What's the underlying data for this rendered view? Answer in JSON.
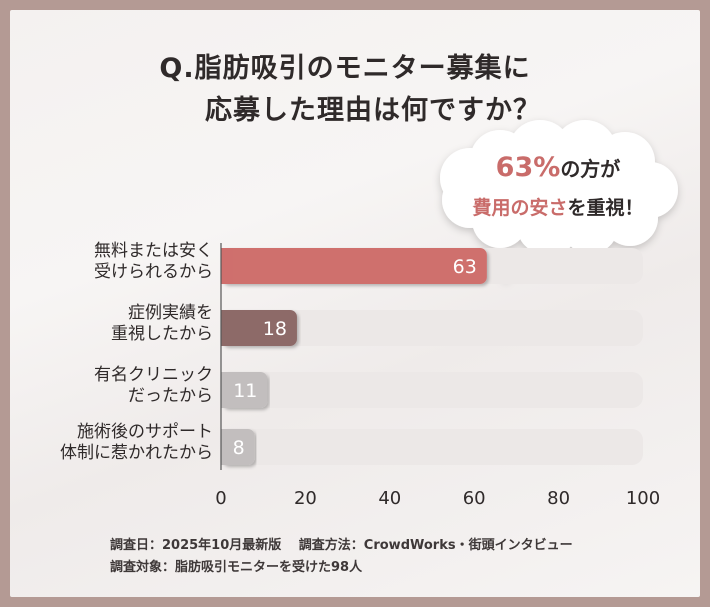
{
  "title_lines": [
    "Q.脂肪吸引のモニター募集に",
    "応募した理由は何ですか？"
  ],
  "callout": {
    "line1_emphasis": "63%",
    "line1_rest": "の方が",
    "line2_emphasis": "費用の安さ",
    "line2_rest": "を重視！"
  },
  "chart_data": {
    "type": "bar",
    "orientation": "horizontal",
    "categories": [
      [
        "無料または安く",
        "受けられるから"
      ],
      [
        "症例実績を",
        "重視したから"
      ],
      [
        "有名クリニック",
        "だったから"
      ],
      [
        "施術後のサポート",
        "体制に惹かれたから"
      ]
    ],
    "values": [
      63,
      18,
      11,
      8
    ],
    "xlim": [
      0,
      100
    ],
    "xticks": [
      0,
      20,
      40,
      60,
      80,
      100
    ],
    "title": "",
    "xlabel": "",
    "ylabel": "",
    "grid": false,
    "bar_colors": [
      "#cf6f6d",
      "#8d6a68",
      "#c2bebe",
      "#c2bebe"
    ],
    "track_color": "#ece8e7"
  },
  "notes": {
    "line1": "調査日：2025年10月最新版　 調査方法：CrowdWorks・街頭インタビュー",
    "line2": "調査対象：脂肪吸引モニターを受けた98人"
  },
  "colors": {
    "accent": "#c96c6a",
    "title": "#2f2a2a",
    "frame": "#b49a94"
  }
}
